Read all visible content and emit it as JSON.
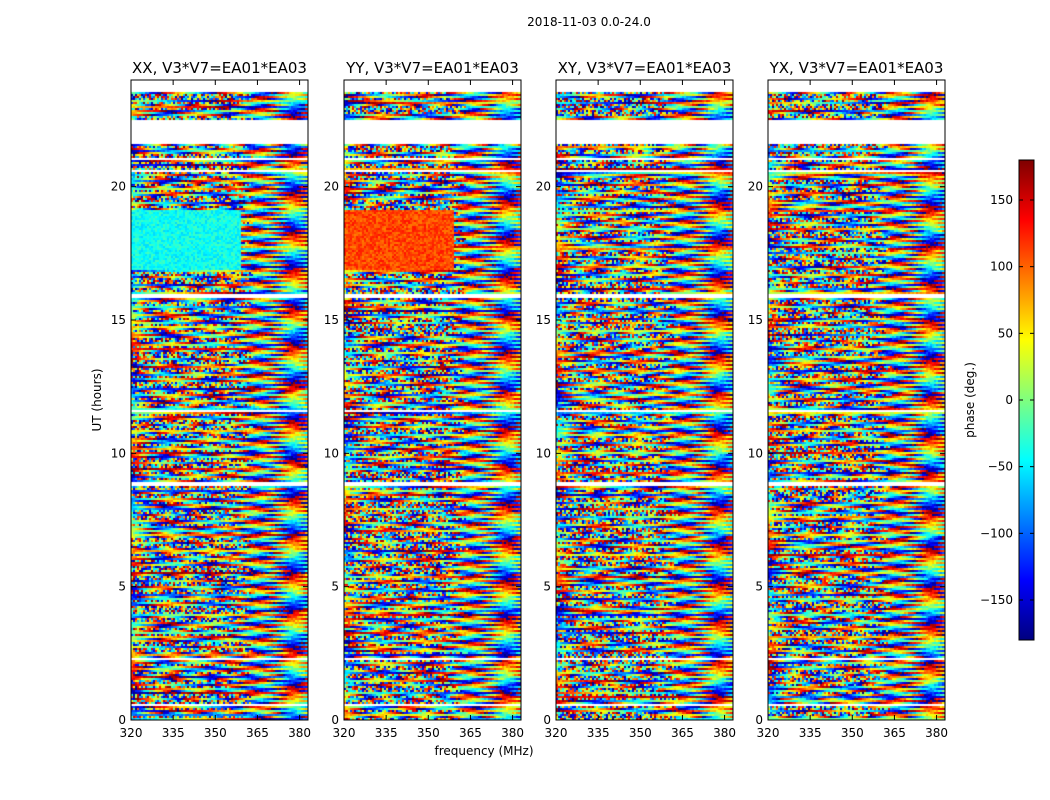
{
  "chart_data": {
    "type": "heatmap",
    "suptitle": "2018-11-03 0.0-24.0",
    "xlabel": "frequency (MHz)",
    "ylabel": "UT (hours)",
    "xlim": [
      320,
      383
    ],
    "ylim": [
      0,
      24
    ],
    "xticks": [
      320,
      335,
      350,
      365,
      380
    ],
    "yticks": [
      0,
      5,
      10,
      15,
      20
    ],
    "colormap": "jet",
    "colors": [
      "#00007f",
      "#0000ff",
      "#007fff",
      "#00ffff",
      "#7fff7f",
      "#ffff00",
      "#ff7f00",
      "#ff0000",
      "#7f0000"
    ],
    "colorbar": {
      "label": "phase (deg.)",
      "range": [
        -180,
        180
      ],
      "ticks": [
        -150,
        -100,
        -50,
        0,
        50,
        100,
        150
      ],
      "tick_labels": [
        "−150",
        "−100",
        "−50",
        "0",
        "50",
        "100",
        "150"
      ]
    },
    "blank_bands_hours": [
      [
        21.6,
        22.5
      ],
      [
        23.55,
        24.0
      ],
      [
        21.0,
        21.1
      ],
      [
        20.55,
        20.65
      ],
      [
        15.85,
        15.95
      ],
      [
        11.55,
        11.6
      ],
      [
        8.75,
        8.95
      ],
      [
        2.25,
        2.3
      ],
      [
        0.55,
        0.62
      ]
    ],
    "panels": [
      {
        "title": "XX, V3*V7=EA01*EA03",
        "dominant_phase_deg": -30,
        "calibrator_band_hours": [
          16.9,
          19.1
        ],
        "calibrator_phase_deg": -40
      },
      {
        "title": "YY, V3*V7=EA01*EA03",
        "dominant_phase_deg": 100,
        "calibrator_band_hours": [
          16.9,
          19.1
        ],
        "calibrator_phase_deg": 110
      },
      {
        "title": "XY, V3*V7=EA01*EA03",
        "dominant_phase_deg": 0,
        "calibrator_band_hours": null,
        "calibrator_phase_deg": null
      },
      {
        "title": "YX, V3*V7=EA01*EA03",
        "dominant_phase_deg": 0,
        "calibrator_band_hours": null,
        "calibrator_phase_deg": null
      }
    ]
  }
}
